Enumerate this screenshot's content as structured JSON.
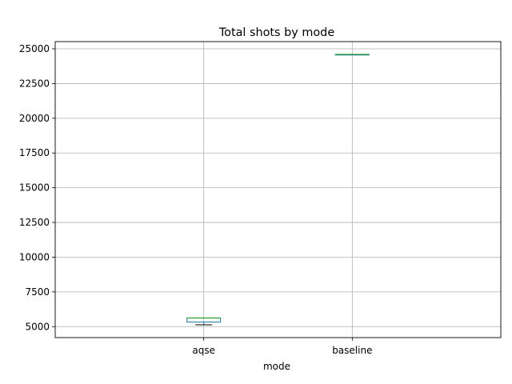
{
  "chart_data": {
    "type": "box",
    "title": "Total shots by mode",
    "xlabel": "mode",
    "ylabel": "",
    "categories": [
      "aqse",
      "baseline"
    ],
    "boxes": [
      {
        "category": "aqse",
        "min": 5130,
        "q1": 5330,
        "median": 5620,
        "q3": 5620,
        "max": 5620
      },
      {
        "category": "baseline",
        "min": 24600,
        "q1": 24600,
        "median": 24600,
        "q3": 24600,
        "max": 24600
      }
    ],
    "ylim": [
      4210,
      25520
    ],
    "yticks": [
      5000,
      7500,
      10000,
      12500,
      15000,
      17500,
      20000,
      22500,
      25000
    ],
    "grid": true,
    "colors": {
      "box": "#1f77b4",
      "median": "#2ca02c",
      "whisker": "#1f77b4",
      "cap": "#000000",
      "grid": "#b0b0b0"
    }
  }
}
